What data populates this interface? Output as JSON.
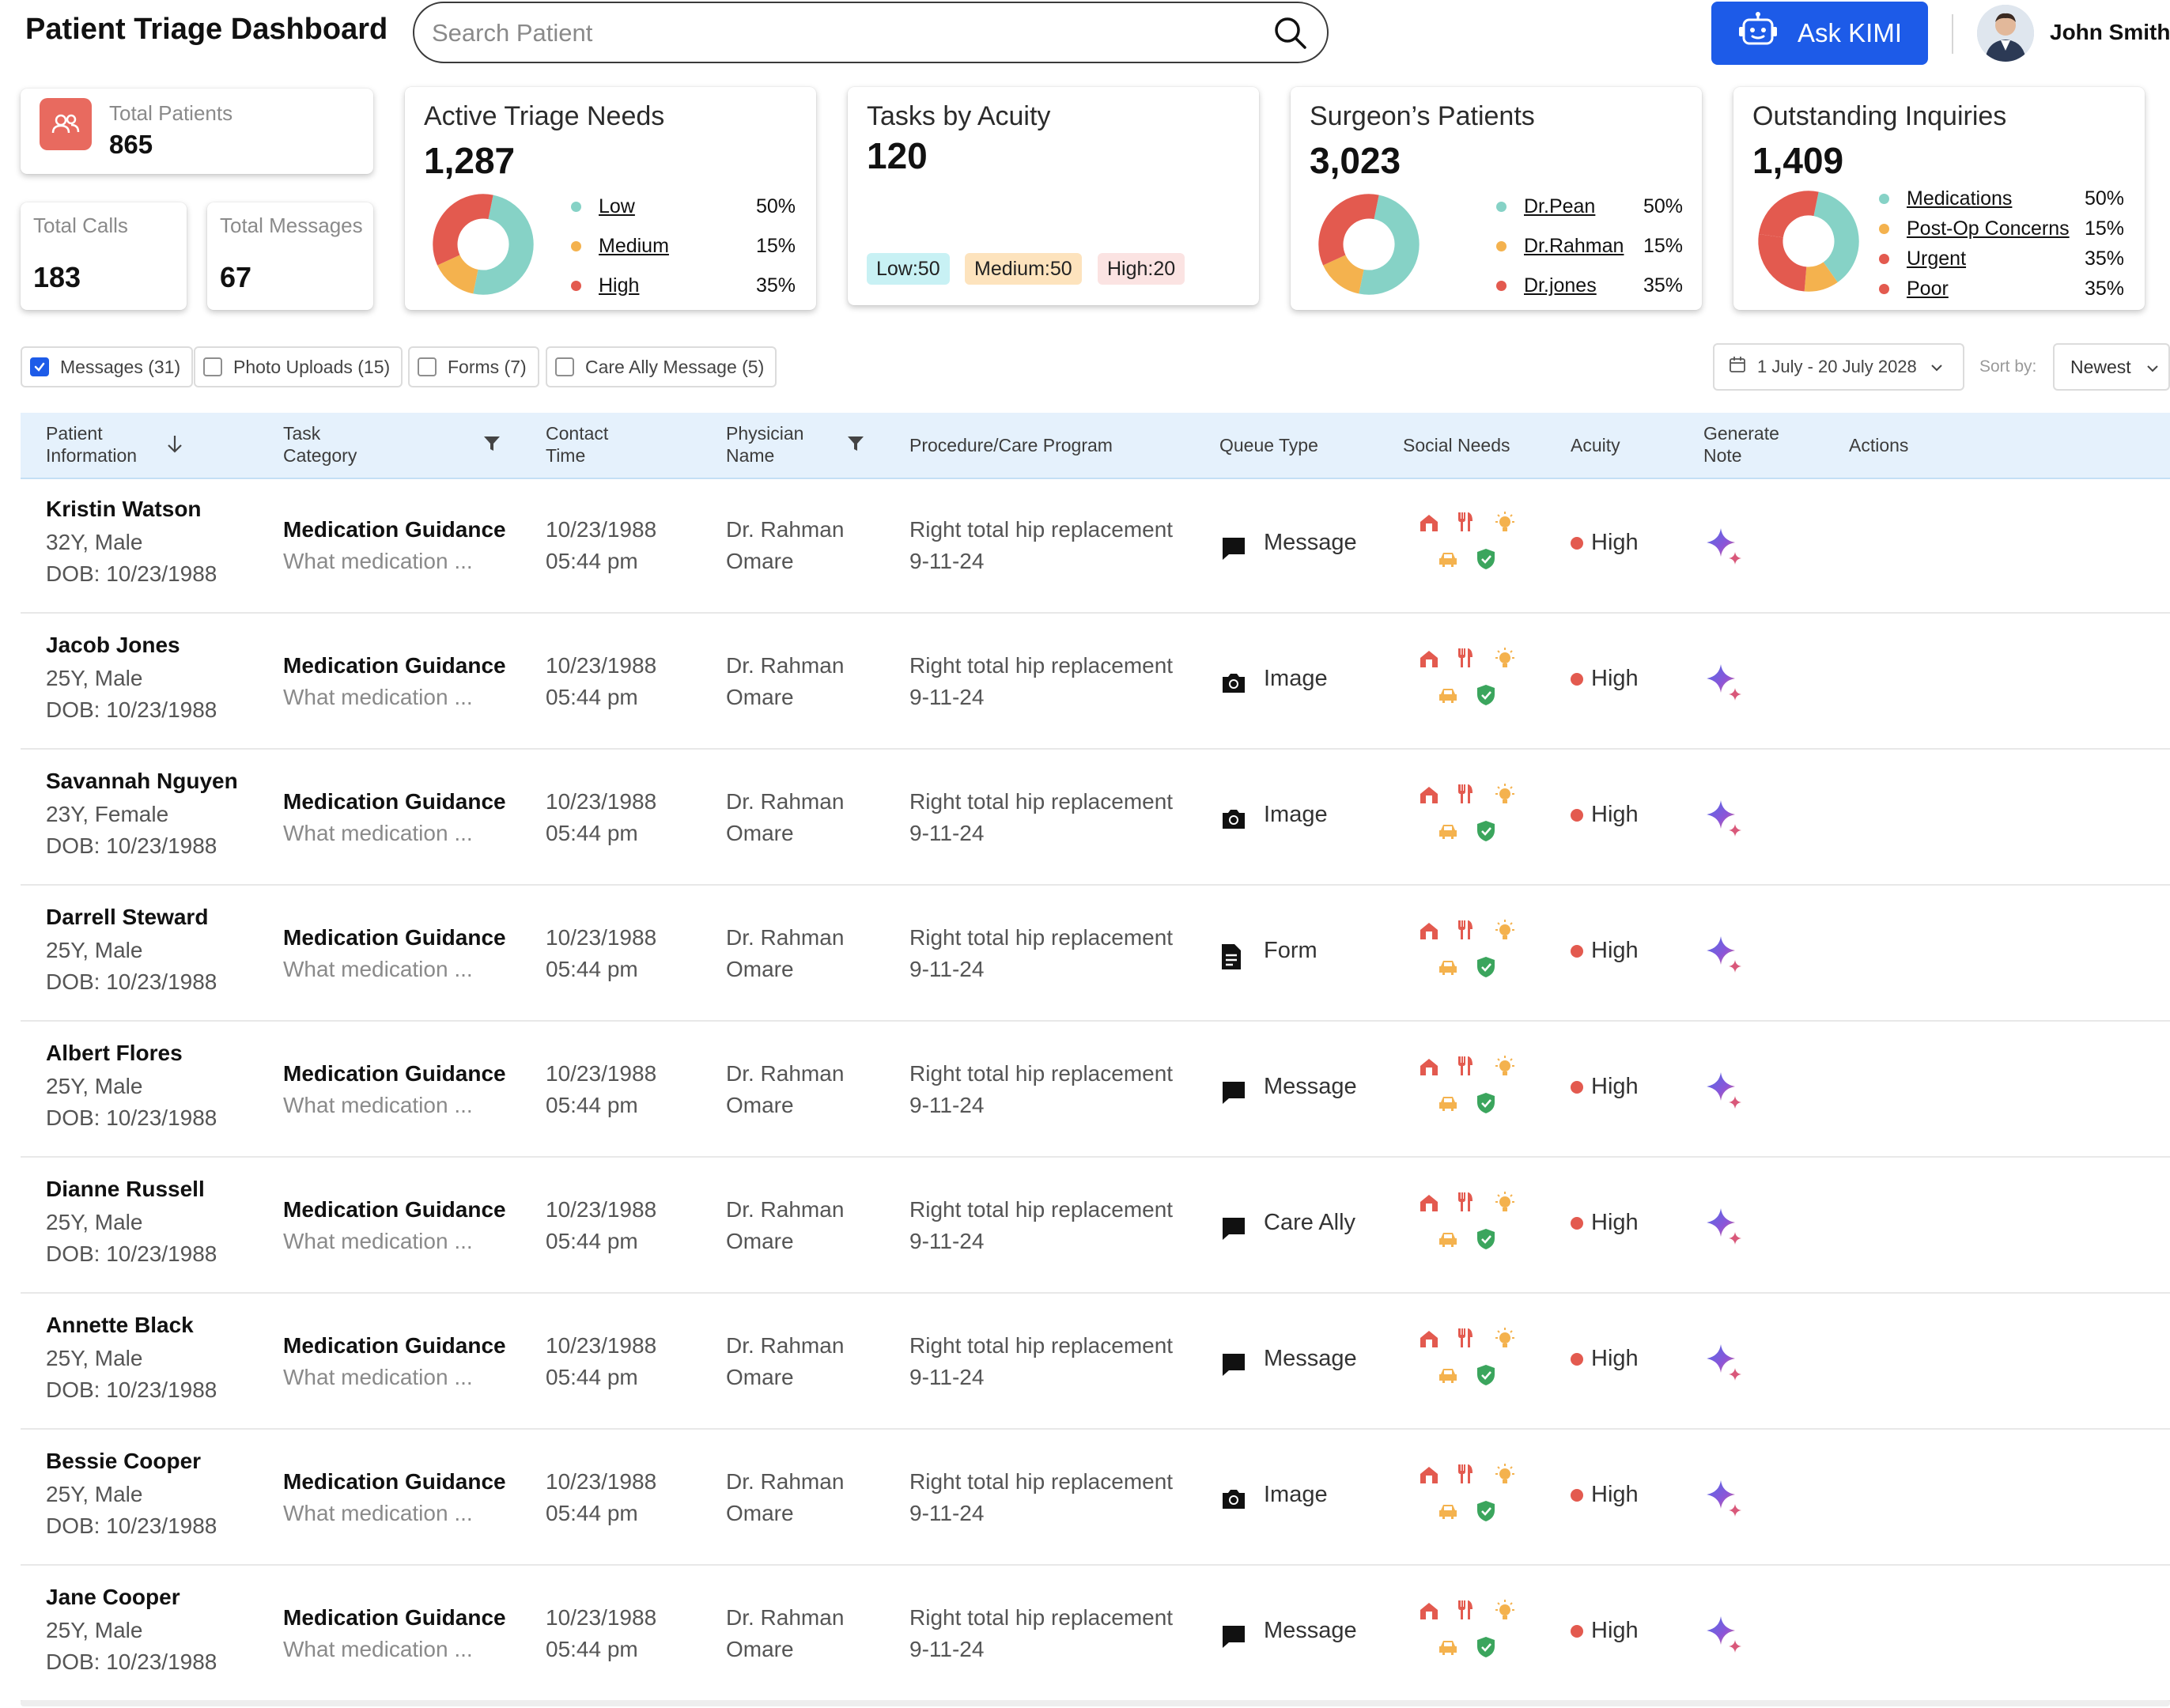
{
  "header": {
    "title": "Patient Triage Dashboard",
    "search_placeholder": "Search Patient",
    "ask_label": "Ask KIMI",
    "user_name": "John Smith"
  },
  "stats": {
    "total_patients": {
      "label": "Total Patients",
      "value": "865"
    },
    "total_calls": {
      "label": "Total Calls",
      "value": "183"
    },
    "total_messages": {
      "label": "Total Messages",
      "value": "67"
    }
  },
  "cards": {
    "active_triage": {
      "title": "Active Triage Needs",
      "value": "1,287",
      "segments": [
        {
          "label": "Low",
          "pct": "50%",
          "value": 50,
          "color": "#86d2c6"
        },
        {
          "label": "Medium",
          "pct": "15%",
          "value": 15,
          "color": "#f4b24e"
        },
        {
          "label": "High",
          "pct": "35%",
          "value": 35,
          "color": "#e35a4f"
        }
      ]
    },
    "tasks_by_acuity": {
      "title": "Tasks by Acuity",
      "value": "120",
      "pills": [
        {
          "label": "Low:50",
          "color": "#c8f1f4"
        },
        {
          "label": "Medium:50",
          "color": "#fde3bd"
        },
        {
          "label": "High:20",
          "color": "#fbe3e2"
        }
      ]
    },
    "surgeons_patients": {
      "title": "Surgeon’s Patients",
      "value": "3,023",
      "segments": [
        {
          "label": "Dr.Pean",
          "pct": "50%",
          "value": 50,
          "color": "#86d2c6"
        },
        {
          "label": "Dr.Rahman",
          "pct": "15%",
          "value": 15,
          "color": "#f4b24e"
        },
        {
          "label": "Dr.jones",
          "pct": "35%",
          "value": 35,
          "color": "#e35a4f"
        }
      ]
    },
    "outstanding_inquiries": {
      "title": "Outstanding Inquiries",
      "value": "1,409",
      "segments": [
        {
          "label": "Medications",
          "pct": "50%",
          "value": 50,
          "color": "#86d2c6"
        },
        {
          "label": "Post-Op Concerns",
          "pct": "15%",
          "value": 15,
          "color": "#f4b24e"
        },
        {
          "label": "Urgent",
          "pct": "35%",
          "value": 35,
          "color": "#e35a4f"
        },
        {
          "label": "Poor",
          "pct": "35%",
          "value": 35,
          "color": "#e35a4f"
        }
      ]
    }
  },
  "filters": {
    "chips": [
      {
        "label": "Messages (31)",
        "checked": true
      },
      {
        "label": "Photo Uploads (15)",
        "checked": false
      },
      {
        "label": "Forms (7)",
        "checked": false
      },
      {
        "label": "Care Ally Message (5)",
        "checked": false
      }
    ],
    "date_range": "1 July - 20 July 2028",
    "sort_label": "Sort by:",
    "sort_value": "Newest"
  },
  "table": {
    "headers": {
      "patient": [
        "Patient",
        "Information"
      ],
      "task": [
        "Task",
        "Category"
      ],
      "contact": [
        "Contact",
        "Time"
      ],
      "physician": [
        "Physician",
        "Name"
      ],
      "procedure": "Procedure/Care Program",
      "queue": "Queue Type",
      "social": "Social Needs",
      "acuity": "Acuity",
      "generate": [
        "Generate",
        "Note"
      ],
      "actions": "Actions"
    },
    "rows": [
      {
        "name": "Kristin Watson",
        "age_sex": "32Y, Male",
        "dob": "DOB: 10/23/1988",
        "task": "Medication Guidance",
        "task_sub": "What medication ...",
        "date": "10/23/1988",
        "time": "05:44 pm",
        "phys_1": "Dr. Rahman",
        "phys_2": "Omare",
        "proc_1": "Right total hip replacement",
        "proc_2": "9-11-24",
        "queue": "Message",
        "queue_icon": "message-icon",
        "acuity": "High"
      },
      {
        "name": "Jacob Jones",
        "age_sex": "25Y, Male",
        "dob": "DOB: 10/23/1988",
        "task": "Medication Guidance",
        "task_sub": "What medication ...",
        "date": "10/23/1988",
        "time": "05:44 pm",
        "phys_1": "Dr. Rahman",
        "phys_2": "Omare",
        "proc_1": "Right total hip replacement",
        "proc_2": "9-11-24",
        "queue": "Image",
        "queue_icon": "camera-icon",
        "acuity": "High"
      },
      {
        "name": "Savannah Nguyen",
        "age_sex": "23Y, Female",
        "dob": "DOB: 10/23/1988",
        "task": "Medication Guidance",
        "task_sub": "What medication ...",
        "date": "10/23/1988",
        "time": "05:44 pm",
        "phys_1": "Dr. Rahman",
        "phys_2": "Omare",
        "proc_1": "Right total hip replacement",
        "proc_2": "9-11-24",
        "queue": "Image",
        "queue_icon": "camera-icon",
        "acuity": "High"
      },
      {
        "name": "Darrell Steward",
        "age_sex": "25Y, Male",
        "dob": "DOB: 10/23/1988",
        "task": "Medication Guidance",
        "task_sub": "What medication ...",
        "date": "10/23/1988",
        "time": "05:44 pm",
        "phys_1": "Dr. Rahman",
        "phys_2": "Omare",
        "proc_1": "Right total hip replacement",
        "proc_2": "9-11-24",
        "queue": "Form",
        "queue_icon": "form-icon",
        "acuity": "High"
      },
      {
        "name": "Albert Flores",
        "age_sex": "25Y, Male",
        "dob": "DOB: 10/23/1988",
        "task": "Medication Guidance",
        "task_sub": "What medication ...",
        "date": "10/23/1988",
        "time": "05:44 pm",
        "phys_1": "Dr. Rahman",
        "phys_2": "Omare",
        "proc_1": "Right total hip replacement",
        "proc_2": "9-11-24",
        "queue": "Message",
        "queue_icon": "message-icon",
        "acuity": "High"
      },
      {
        "name": "Dianne Russell",
        "age_sex": "25Y, Male",
        "dob": "DOB: 10/23/1988",
        "task": "Medication Guidance",
        "task_sub": "What medication ...",
        "date": "10/23/1988",
        "time": "05:44 pm",
        "phys_1": "Dr. Rahman",
        "phys_2": "Omare",
        "proc_1": "Right total hip replacement",
        "proc_2": "9-11-24",
        "queue": "Care Ally",
        "queue_icon": "message-icon",
        "acuity": "High"
      },
      {
        "name": "Annette Black",
        "age_sex": "25Y, Male",
        "dob": "DOB: 10/23/1988",
        "task": "Medication Guidance",
        "task_sub": "What medication ...",
        "date": "10/23/1988",
        "time": "05:44 pm",
        "phys_1": "Dr. Rahman",
        "phys_2": "Omare",
        "proc_1": "Right total hip replacement",
        "proc_2": "9-11-24",
        "queue": "Message",
        "queue_icon": "message-icon",
        "acuity": "High"
      },
      {
        "name": "Bessie Cooper",
        "age_sex": "25Y, Male",
        "dob": "DOB: 10/23/1988",
        "task": "Medication Guidance",
        "task_sub": "What medication ...",
        "date": "10/23/1988",
        "time": "05:44 pm",
        "phys_1": "Dr. Rahman",
        "phys_2": "Omare",
        "proc_1": "Right total hip replacement",
        "proc_2": "9-11-24",
        "queue": "Image",
        "queue_icon": "camera-icon",
        "acuity": "High"
      },
      {
        "name": "Jane Cooper",
        "age_sex": "25Y, Male",
        "dob": "DOB: 10/23/1988",
        "task": "Medication Guidance",
        "task_sub": "What medication ...",
        "date": "10/23/1988",
        "time": "05:44 pm",
        "phys_1": "Dr. Rahman",
        "phys_2": "Omare",
        "proc_1": "Right total hip replacement",
        "proc_2": "9-11-24",
        "queue": "Message",
        "queue_icon": "message-icon",
        "acuity": "High"
      }
    ]
  },
  "icons": {
    "social_needs": [
      "house-icon",
      "fork-knife-icon",
      "lightbulb-icon",
      "car-icon",
      "shield-check-icon"
    ],
    "generate": "sparkle-icon"
  },
  "colors": {
    "accent": "#1d5be8",
    "low": "#86d2c6",
    "medium": "#f4b24e",
    "high": "#e35a4f",
    "header_bg": "#e5f1fc"
  }
}
